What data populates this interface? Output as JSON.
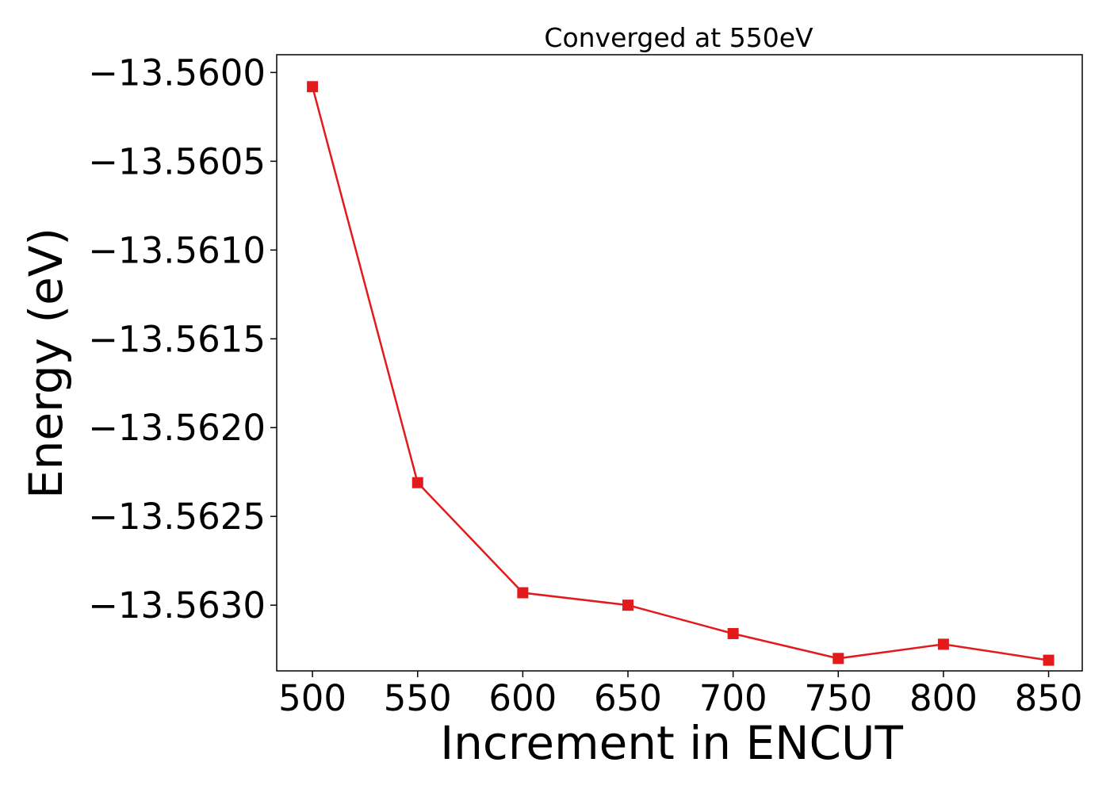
{
  "chart_data": {
    "type": "line",
    "title": "Converged at 550eV",
    "xlabel": "Increment in ENCUT",
    "ylabel": "Energy (eV)",
    "xlim": [
      483,
      866
    ],
    "ylim": [
      -13.56337,
      -13.5599
    ],
    "x_ticks": [
      500,
      550,
      600,
      650,
      700,
      750,
      800,
      850
    ],
    "x_tick_labels": [
      "500",
      "550",
      "600",
      "650",
      "700",
      "750",
      "800",
      "850"
    ],
    "y_ticks": [
      -13.56,
      -13.5605,
      -13.561,
      -13.5615,
      -13.562,
      -13.5625,
      -13.563
    ],
    "y_tick_labels": [
      "−13.5600",
      "−13.5605",
      "−13.5610",
      "−13.5615",
      "−13.5620",
      "−13.5625",
      "−13.5630"
    ],
    "grid": false,
    "legend": "none",
    "series": [
      {
        "color": "#e31a1c",
        "marker": "square",
        "x": [
          500,
          550,
          600,
          650,
          700,
          750,
          800,
          850
        ],
        "y": [
          -13.56008,
          -13.56231,
          -13.56293,
          -13.563,
          -13.56316,
          -13.5633,
          -13.56322,
          -13.56331
        ]
      }
    ]
  }
}
